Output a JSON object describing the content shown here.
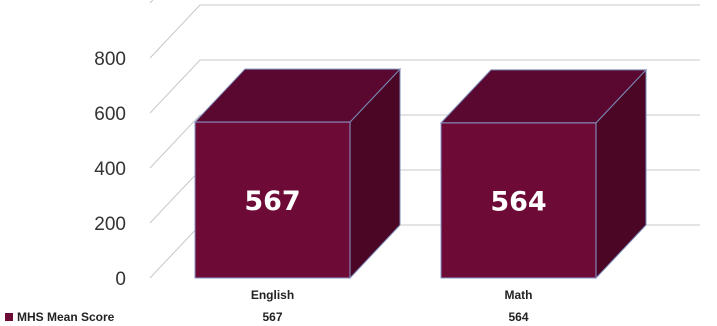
{
  "chart_data": {
    "type": "bar",
    "categories": [
      "English",
      "Math"
    ],
    "series": [
      {
        "name": "MHS Mean Score",
        "values": [
          567,
          564
        ],
        "color": "#6e0a36"
      }
    ],
    "ylim": [
      0,
      800
    ],
    "yticks": [
      0,
      200,
      400,
      600,
      800
    ],
    "data_labels": [
      "567",
      "564"
    ],
    "grid": true,
    "legend_placement": "bottom-left",
    "legend_table_values": [
      "567",
      "564"
    ]
  }
}
